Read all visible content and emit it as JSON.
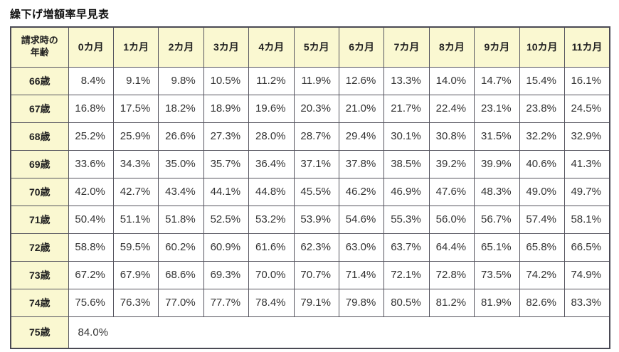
{
  "title": "繰下げ増額率早見表",
  "table": {
    "corner_header": {
      "line1": "請求時の",
      "line2": "年齢"
    },
    "column_headers": [
      "0カ月",
      "1カ月",
      "2カ月",
      "3カ月",
      "4カ月",
      "5カ月",
      "6カ月",
      "7カ月",
      "8カ月",
      "9カ月",
      "10カ月",
      "11カ月"
    ],
    "rows": [
      {
        "label": "66歳",
        "values": [
          "8.4%",
          "9.1%",
          "9.8%",
          "10.5%",
          "11.2%",
          "11.9%",
          "12.6%",
          "13.3%",
          "14.0%",
          "14.7%",
          "15.4%",
          "16.1%"
        ]
      },
      {
        "label": "67歳",
        "values": [
          "16.8%",
          "17.5%",
          "18.2%",
          "18.9%",
          "19.6%",
          "20.3%",
          "21.0%",
          "21.7%",
          "22.4%",
          "23.1%",
          "23.8%",
          "24.5%"
        ]
      },
      {
        "label": "68歳",
        "values": [
          "25.2%",
          "25.9%",
          "26.6%",
          "27.3%",
          "28.0%",
          "28.7%",
          "29.4%",
          "30.1%",
          "30.8%",
          "31.5%",
          "32.2%",
          "32.9%"
        ]
      },
      {
        "label": "69歳",
        "values": [
          "33.6%",
          "34.3%",
          "35.0%",
          "35.7%",
          "36.4%",
          "37.1%",
          "37.8%",
          "38.5%",
          "39.2%",
          "39.9%",
          "40.6%",
          "41.3%"
        ]
      },
      {
        "label": "70歳",
        "values": [
          "42.0%",
          "42.7%",
          "43.4%",
          "44.1%",
          "44.8%",
          "45.5%",
          "46.2%",
          "46.9%",
          "47.6%",
          "48.3%",
          "49.0%",
          "49.7%"
        ]
      },
      {
        "label": "71歳",
        "values": [
          "50.4%",
          "51.1%",
          "51.8%",
          "52.5%",
          "53.2%",
          "53.9%",
          "54.6%",
          "55.3%",
          "56.0%",
          "56.7%",
          "57.4%",
          "58.1%"
        ]
      },
      {
        "label": "72歳",
        "values": [
          "58.8%",
          "59.5%",
          "60.2%",
          "60.9%",
          "61.6%",
          "62.3%",
          "63.0%",
          "63.7%",
          "64.4%",
          "65.1%",
          "65.8%",
          "66.5%"
        ]
      },
      {
        "label": "73歳",
        "values": [
          "67.2%",
          "67.9%",
          "68.6%",
          "69.3%",
          "70.0%",
          "70.7%",
          "71.4%",
          "72.1%",
          "72.8%",
          "73.5%",
          "74.2%",
          "74.9%"
        ]
      },
      {
        "label": "74歳",
        "values": [
          "75.6%",
          "76.3%",
          "77.0%",
          "77.7%",
          "78.4%",
          "79.1%",
          "79.8%",
          "80.5%",
          "81.2%",
          "81.9%",
          "82.6%",
          "83.3%"
        ]
      },
      {
        "label": "75歳",
        "values": [
          "84.0%"
        ],
        "colspan": 12
      }
    ]
  },
  "colors": {
    "header_bg": "#faf8d1",
    "border": "#55545e",
    "outer_border": "#4a4954",
    "text": "#333333",
    "title_text": "#111111"
  }
}
